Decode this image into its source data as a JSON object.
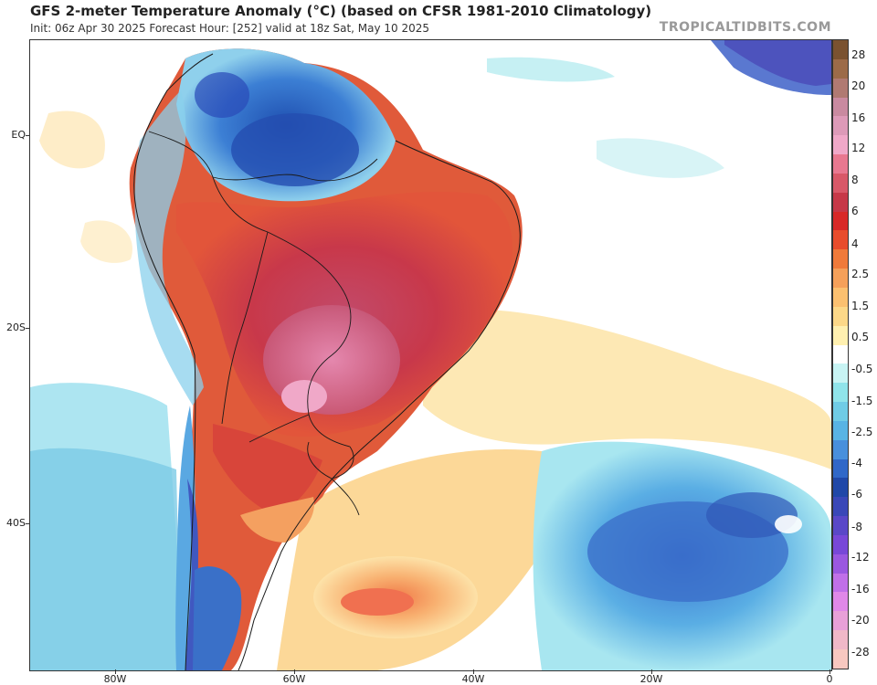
{
  "header": {
    "title": "GFS 2-meter Temperature Anomaly (°C) (based on CFSR 1981-2010 Climatology)",
    "subtitle": "Init: 06z Apr 30 2025   Forecast Hour: [252]   valid at 18z Sat, May 10 2025",
    "watermark": "TROPICALTIDBITS.COM"
  },
  "axes": {
    "lat_labels": [
      "EQ",
      "20S",
      "40S"
    ],
    "lon_labels": [
      "80W",
      "60W",
      "40W",
      "20W",
      "0"
    ]
  },
  "colorbar": {
    "labels": [
      "28",
      "20",
      "16",
      "12",
      "8",
      "6",
      "4",
      "2.5",
      "1.5",
      "0.5",
      "-0.5",
      "-1.5",
      "-2.5",
      "-4",
      "-6",
      "-8",
      "-12",
      "-16",
      "-20",
      "-28"
    ],
    "colors": [
      "#7a5230",
      "#9c6b48",
      "#b07a72",
      "#c98aa0",
      "#dd9ab8",
      "#f0a8c8",
      "#e87890",
      "#d85868",
      "#c63848",
      "#d82828",
      "#e84c2c",
      "#f07a3a",
      "#f5a05a",
      "#fbc070",
      "#fcd888",
      "#fff0b0",
      "#ffffff",
      "#c8f4f4",
      "#90e4ea",
      "#70cce6",
      "#58b4e4",
      "#4890dc",
      "#3068c8",
      "#2048a8",
      "#3a48b8",
      "#5a48c8",
      "#7848d8",
      "#9a58e0",
      "#c070e8",
      "#e088e8",
      "#e8a0d8",
      "#f0b8c8",
      "#f8c8c0"
    ]
  }
}
